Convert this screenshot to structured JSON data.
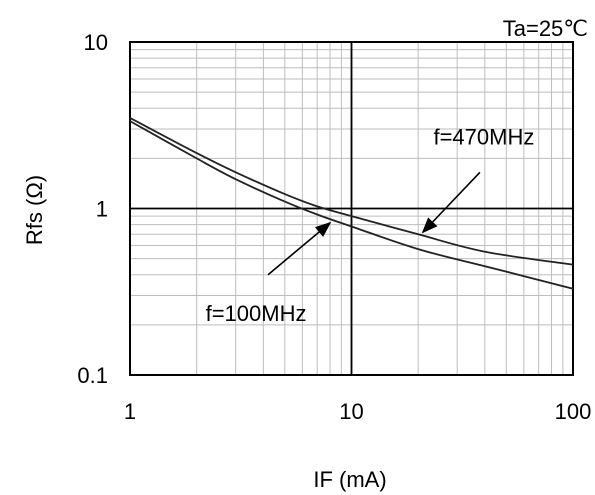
{
  "chart_data": {
    "type": "line",
    "title": "",
    "condition": "Ta=25℃",
    "xlabel": "IF (mA)",
    "ylabel": "Rfs (Ω)",
    "xscale": "log",
    "yscale": "log",
    "xlim": [
      1,
      100
    ],
    "ylim": [
      0.1,
      10
    ],
    "grid": true,
    "x_tick_labels": [
      "1",
      "10",
      "100"
    ],
    "y_tick_labels": [
      "10",
      "1",
      "0.1"
    ],
    "series": [
      {
        "name": "f=470MHz",
        "x": [
          1,
          2,
          3,
          5,
          7,
          10,
          20,
          40,
          100
        ],
        "y": [
          3.5,
          2.15,
          1.65,
          1.22,
          1.03,
          0.9,
          0.7,
          0.55,
          0.46
        ]
      },
      {
        "name": "f=100MHz",
        "x": [
          1,
          2,
          3,
          5,
          7,
          10,
          20,
          40,
          100
        ],
        "y": [
          3.35,
          2.0,
          1.5,
          1.1,
          0.92,
          0.78,
          0.57,
          0.45,
          0.33
        ]
      }
    ],
    "annotations": [
      {
        "text": "f=470MHz",
        "arrow_target": [
          21,
          0.72
        ],
        "arrow_from": [
          38,
          1.65
        ]
      },
      {
        "text": "f=100MHz",
        "arrow_target": [
          8,
          0.82
        ],
        "arrow_from": [
          4.2,
          0.4
        ]
      }
    ]
  }
}
